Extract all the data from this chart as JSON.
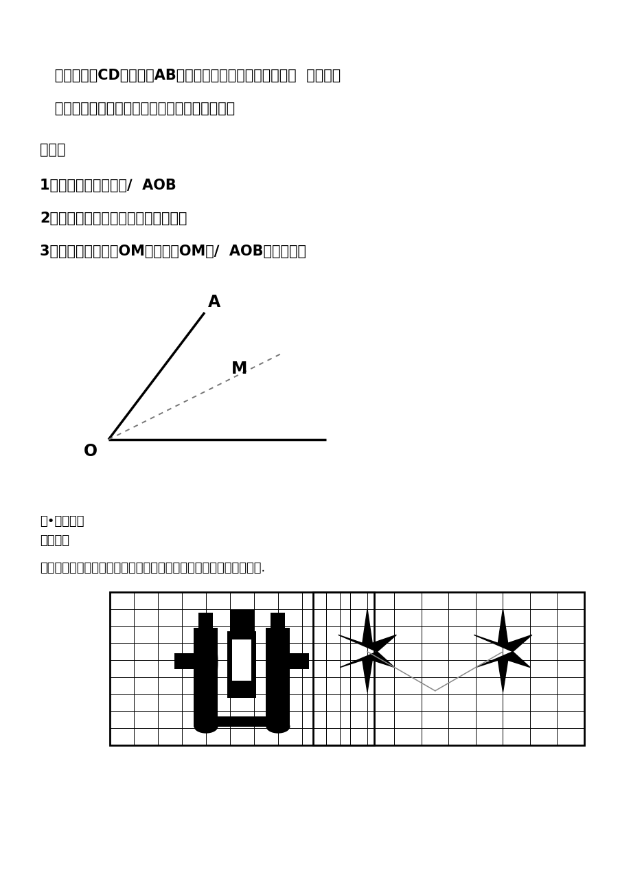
{
  "line1": "   如图：直线CD就是线段AB的垂直平分线，又可称为中垂线  试一试：",
  "line2": "   （二）角是轴对称图形吗？它的对称轴是什么？",
  "line3": "步骤：",
  "line4": "1、在准备好的纸上画∕  AOB",
  "line5": "2、对折这个角，使角的两边完全重合",
  "line6": "3、用直尺画出折痕OM看看射线OM与∕  AOB是什么关系",
  "line7": "三•寻求规律",
  "line8": "试一试：",
  "line9": "如图所示，方格子内的两图形都是成轴对称的，请画出它们的对称轴.",
  "bg_color": "#ffffff",
  "text_color": "#000000",
  "fs": 15
}
